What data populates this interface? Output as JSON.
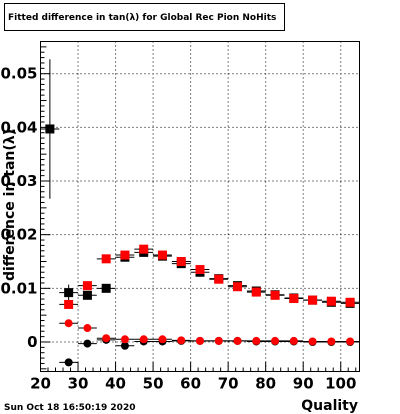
{
  "title": "Fitted difference in tan(λ) for Global Rec Pion NoHits",
  "timestamp": "Sun Oct 18 16:50:19 2020",
  "chart_data": {
    "type": "scatter",
    "title": "Fitted difference in tan(λ) for Global Rec Pion NoHits",
    "xlabel": "Quality",
    "ylabel": "difference in tan(λ)",
    "xlim": [
      20,
      105
    ],
    "ylim": [
      -0.0055,
      0.056
    ],
    "x_ticks": [
      20,
      30,
      40,
      50,
      60,
      70,
      80,
      90,
      100
    ],
    "y_ticks": [
      0,
      0.01,
      0.02,
      0.03,
      0.04,
      0.05
    ],
    "y_tick_labels": [
      "0",
      "0.01",
      "0.02",
      "0.03",
      "0.04",
      "0.05"
    ],
    "grid": true,
    "series": [
      {
        "marker": "square",
        "color": "#000000",
        "points": [
          {
            "x": 22.5,
            "y": 0.0397,
            "yerr": 0.013
          },
          {
            "x": 27.5,
            "y": 0.0092,
            "yerr": 0.0015
          },
          {
            "x": 32.5,
            "y": 0.0087,
            "yerr": 0.0006
          },
          {
            "x": 37.5,
            "y": 0.01,
            "yerr": 0.0004
          },
          {
            "x": 42.5,
            "y": 0.0158,
            "yerr": 0.0003
          },
          {
            "x": 47.5,
            "y": 0.0167,
            "yerr": 0.0003
          },
          {
            "x": 52.5,
            "y": 0.016,
            "yerr": 0.0003
          },
          {
            "x": 57.5,
            "y": 0.0146,
            "yerr": 0.0002
          },
          {
            "x": 62.5,
            "y": 0.013,
            "yerr": 0.0002
          },
          {
            "x": 67.5,
            "y": 0.0118,
            "yerr": 0.0002
          },
          {
            "x": 72.5,
            "y": 0.0105,
            "yerr": 0.0002
          },
          {
            "x": 77.5,
            "y": 0.0095,
            "yerr": 0.0002
          },
          {
            "x": 82.5,
            "y": 0.0088,
            "yerr": 0.0002
          },
          {
            "x": 87.5,
            "y": 0.0082,
            "yerr": 0.0002
          },
          {
            "x": 92.5,
            "y": 0.0078,
            "yerr": 0.0002
          },
          {
            "x": 97.5,
            "y": 0.0074,
            "yerr": 0.0002
          },
          {
            "x": 102.5,
            "y": 0.0072,
            "yerr": 0.0002
          }
        ]
      },
      {
        "marker": "square",
        "color": "#ff0000",
        "points": [
          {
            "x": 27.5,
            "y": 0.007,
            "yerr": 0.0004
          },
          {
            "x": 32.5,
            "y": 0.0105,
            "yerr": 0.0003
          },
          {
            "x": 37.5,
            "y": 0.0155,
            "yerr": 0.0003
          },
          {
            "x": 42.5,
            "y": 0.0162,
            "yerr": 0.0003
          },
          {
            "x": 47.5,
            "y": 0.0173,
            "yerr": 0.0003
          },
          {
            "x": 52.5,
            "y": 0.0162,
            "yerr": 0.0002
          },
          {
            "x": 57.5,
            "y": 0.015,
            "yerr": 0.0002
          },
          {
            "x": 62.5,
            "y": 0.0135,
            "yerr": 0.0002
          },
          {
            "x": 67.5,
            "y": 0.0117,
            "yerr": 0.0002
          },
          {
            "x": 72.5,
            "y": 0.0103,
            "yerr": 0.0002
          },
          {
            "x": 77.5,
            "y": 0.0093,
            "yerr": 0.0002
          },
          {
            "x": 82.5,
            "y": 0.0087,
            "yerr": 0.0002
          },
          {
            "x": 87.5,
            "y": 0.0081,
            "yerr": 0.0002
          },
          {
            "x": 92.5,
            "y": 0.0078,
            "yerr": 0.0002
          },
          {
            "x": 97.5,
            "y": 0.0076,
            "yerr": 0.0002
          },
          {
            "x": 102.5,
            "y": 0.0074,
            "yerr": 0.0002
          }
        ]
      },
      {
        "marker": "circle",
        "color": "#000000",
        "points": [
          {
            "x": 27.5,
            "y": -0.0038,
            "yerr": 0.0006
          },
          {
            "x": 32.5,
            "y": -0.0003,
            "yerr": 0.0003
          },
          {
            "x": 37.5,
            "y": 0.0004,
            "yerr": 0.0002
          },
          {
            "x": 42.5,
            "y": -0.0007,
            "yerr": 0.0002
          },
          {
            "x": 47.5,
            "y": 0.0001,
            "yerr": 0.0001
          },
          {
            "x": 52.5,
            "y": 0.0001,
            "yerr": 0.0001
          },
          {
            "x": 57.5,
            "y": 0.0002,
            "yerr": 0.0001
          },
          {
            "x": 62.5,
            "y": 0.0002,
            "yerr": 0.0001
          },
          {
            "x": 67.5,
            "y": 0.0002,
            "yerr": 0.0001
          },
          {
            "x": 72.5,
            "y": 0.0002,
            "yerr": 0.0001
          },
          {
            "x": 77.5,
            "y": 0.0001,
            "yerr": 0.0001
          },
          {
            "x": 82.5,
            "y": 0.0001,
            "yerr": 0.0001
          },
          {
            "x": 87.5,
            "y": 0.0001,
            "yerr": 0.0001
          },
          {
            "x": 92.5,
            "y": 0.0,
            "yerr": 0.0001
          },
          {
            "x": 97.5,
            "y": 0.0,
            "yerr": 0.0001
          },
          {
            "x": 102.5,
            "y": 0.0,
            "yerr": 0.0001
          }
        ]
      },
      {
        "marker": "circle",
        "color": "#ff0000",
        "points": [
          {
            "x": 27.5,
            "y": 0.0035,
            "yerr": 0.0003
          },
          {
            "x": 32.5,
            "y": 0.0026,
            "yerr": 0.0002
          },
          {
            "x": 37.5,
            "y": 0.0007,
            "yerr": 0.0002
          },
          {
            "x": 42.5,
            "y": 0.0005,
            "yerr": 0.0001
          },
          {
            "x": 47.5,
            "y": 0.0005,
            "yerr": 0.0001
          },
          {
            "x": 52.5,
            "y": 0.0005,
            "yerr": 0.0001
          },
          {
            "x": 57.5,
            "y": 0.0003,
            "yerr": 0.0001
          },
          {
            "x": 62.5,
            "y": 0.0002,
            "yerr": 0.0001
          },
          {
            "x": 67.5,
            "y": 0.0002,
            "yerr": 0.0001
          },
          {
            "x": 72.5,
            "y": 0.0002,
            "yerr": 0.0001
          },
          {
            "x": 77.5,
            "y": 0.0002,
            "yerr": 0.0001
          },
          {
            "x": 82.5,
            "y": 0.0002,
            "yerr": 0.0001
          },
          {
            "x": 87.5,
            "y": 0.0002,
            "yerr": 0.0001
          },
          {
            "x": 92.5,
            "y": 0.0001,
            "yerr": 0.0001
          },
          {
            "x": 97.5,
            "y": 0.0001,
            "yerr": 0.0001
          },
          {
            "x": 102.5,
            "y": 0.0001,
            "yerr": 0.0001
          }
        ]
      }
    ]
  }
}
